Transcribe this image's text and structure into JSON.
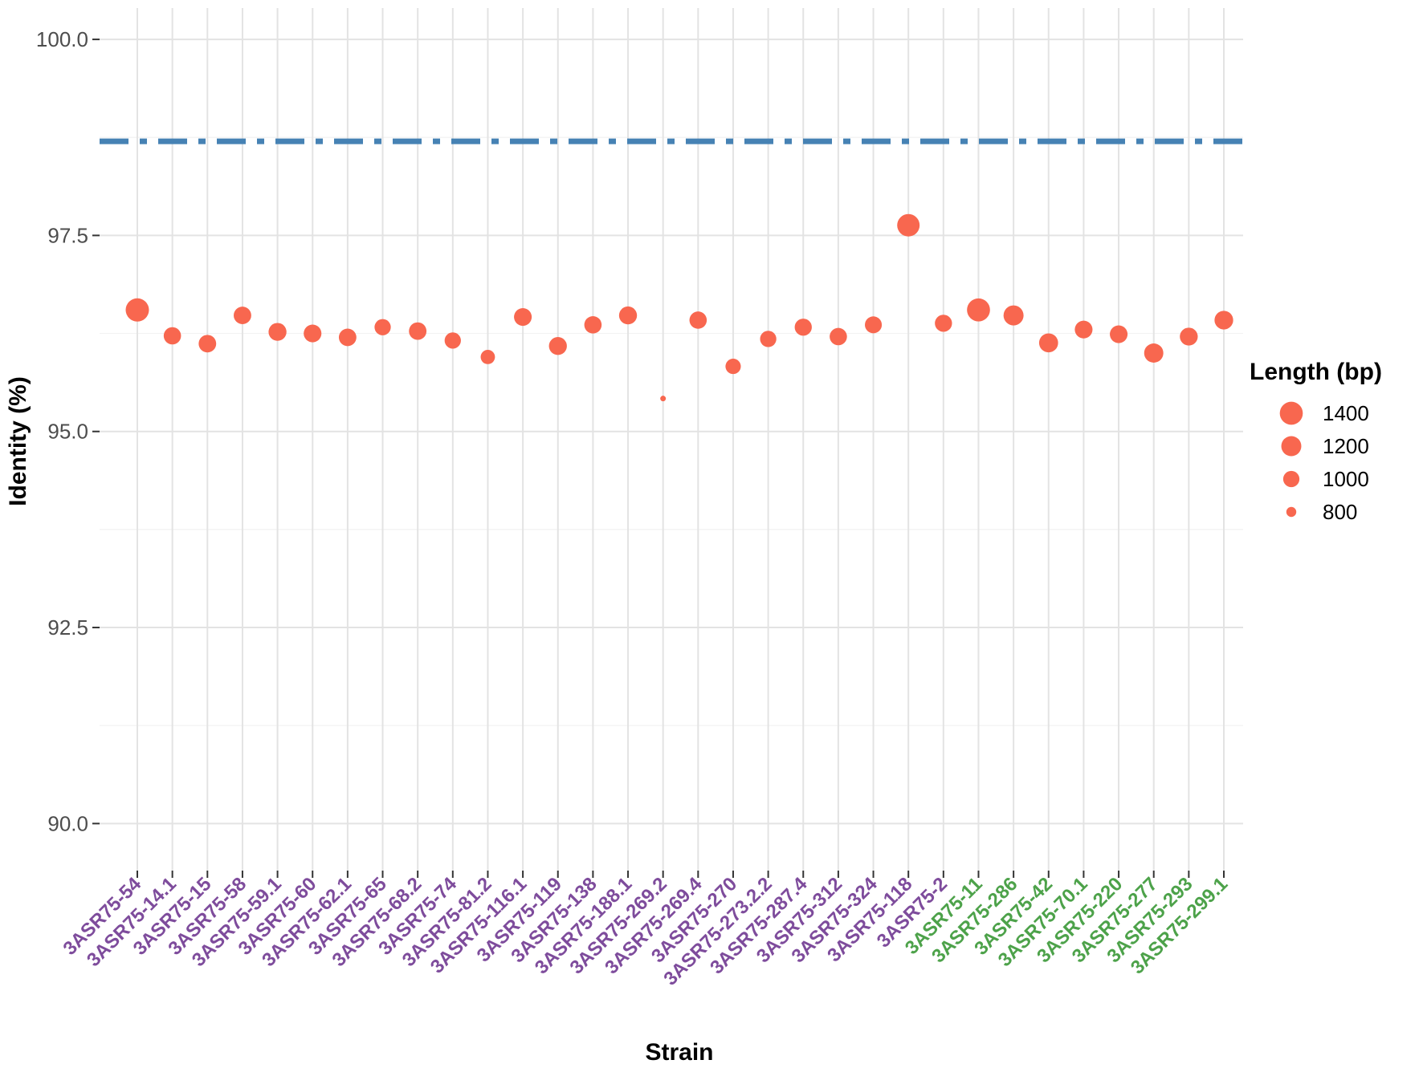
{
  "chart_data": {
    "type": "scatter",
    "title": "",
    "xlabel": "Strain",
    "ylabel": "Identity (%)",
    "ylim": [
      89.4,
      100.4
    ],
    "yticks": [
      "90.0",
      "92.5",
      "95.0",
      "97.5",
      "100.0"
    ],
    "grid": true,
    "legend_position": "right",
    "reference_line": {
      "value": 98.7,
      "style": "dotdash",
      "color": "#4682B4"
    },
    "point_color": "#F8674F",
    "size_legend": {
      "title": "Length (bp)",
      "entries": [
        1400,
        1200,
        1000,
        800
      ]
    },
    "group_colors": {
      "purple": "#7E4C9C",
      "green": "#4DA24A"
    },
    "points": [
      {
        "strain": "3ASR75-54",
        "identity": 96.55,
        "length": 1420,
        "group": "purple"
      },
      {
        "strain": "3ASR75-14.1",
        "identity": 96.22,
        "length": 1050,
        "group": "purple"
      },
      {
        "strain": "3ASR75-15",
        "identity": 96.12,
        "length": 1060,
        "group": "purple"
      },
      {
        "strain": "3ASR75-58",
        "identity": 96.48,
        "length": 1060,
        "group": "purple"
      },
      {
        "strain": "3ASR75-59.1",
        "identity": 96.27,
        "length": 1080,
        "group": "purple"
      },
      {
        "strain": "3ASR75-60",
        "identity": 96.25,
        "length": 1070,
        "group": "purple"
      },
      {
        "strain": "3ASR75-62.1",
        "identity": 96.2,
        "length": 1060,
        "group": "purple"
      },
      {
        "strain": "3ASR75-65",
        "identity": 96.33,
        "length": 1000,
        "group": "purple"
      },
      {
        "strain": "3ASR75-68.2",
        "identity": 96.28,
        "length": 1060,
        "group": "purple"
      },
      {
        "strain": "3ASR75-74",
        "identity": 96.16,
        "length": 1000,
        "group": "purple"
      },
      {
        "strain": "3ASR75-81.2",
        "identity": 95.95,
        "length": 920,
        "group": "purple"
      },
      {
        "strain": "3ASR75-116.1",
        "identity": 96.46,
        "length": 1070,
        "group": "purple"
      },
      {
        "strain": "3ASR75-119",
        "identity": 96.09,
        "length": 1080,
        "group": "purple"
      },
      {
        "strain": "3ASR75-138",
        "identity": 96.36,
        "length": 1050,
        "group": "purple"
      },
      {
        "strain": "3ASR75-188.1",
        "identity": 96.48,
        "length": 1080,
        "group": "purple"
      },
      {
        "strain": "3ASR75-269.2",
        "identity": 95.42,
        "length": 760,
        "group": "purple"
      },
      {
        "strain": "3ASR75-269.4",
        "identity": 96.42,
        "length": 1050,
        "group": "purple"
      },
      {
        "strain": "3ASR75-270",
        "identity": 95.83,
        "length": 960,
        "group": "purple"
      },
      {
        "strain": "3ASR75-273.2.2",
        "identity": 96.18,
        "length": 1000,
        "group": "purple"
      },
      {
        "strain": "3ASR75-287.4",
        "identity": 96.33,
        "length": 1040,
        "group": "purple"
      },
      {
        "strain": "3ASR75-312",
        "identity": 96.21,
        "length": 1050,
        "group": "purple"
      },
      {
        "strain": "3ASR75-324",
        "identity": 96.36,
        "length": 1030,
        "group": "purple"
      },
      {
        "strain": "3ASR75-118",
        "identity": 97.63,
        "length": 1360,
        "group": "purple"
      },
      {
        "strain": "3ASR75-2",
        "identity": 96.38,
        "length": 1040,
        "group": "purple"
      },
      {
        "strain": "3ASR75-11",
        "identity": 96.55,
        "length": 1400,
        "group": "green"
      },
      {
        "strain": "3ASR75-286",
        "identity": 96.48,
        "length": 1200,
        "group": "green"
      },
      {
        "strain": "3ASR75-42",
        "identity": 96.13,
        "length": 1140,
        "group": "green"
      },
      {
        "strain": "3ASR75-70.1",
        "identity": 96.3,
        "length": 1070,
        "group": "green"
      },
      {
        "strain": "3ASR75-220",
        "identity": 96.24,
        "length": 1070,
        "group": "green"
      },
      {
        "strain": "3ASR75-277",
        "identity": 96.0,
        "length": 1150,
        "group": "green"
      },
      {
        "strain": "3ASR75-293",
        "identity": 96.21,
        "length": 1080,
        "group": "green"
      },
      {
        "strain": "3ASR75-299.1",
        "identity": 96.42,
        "length": 1120,
        "group": "green"
      }
    ]
  }
}
